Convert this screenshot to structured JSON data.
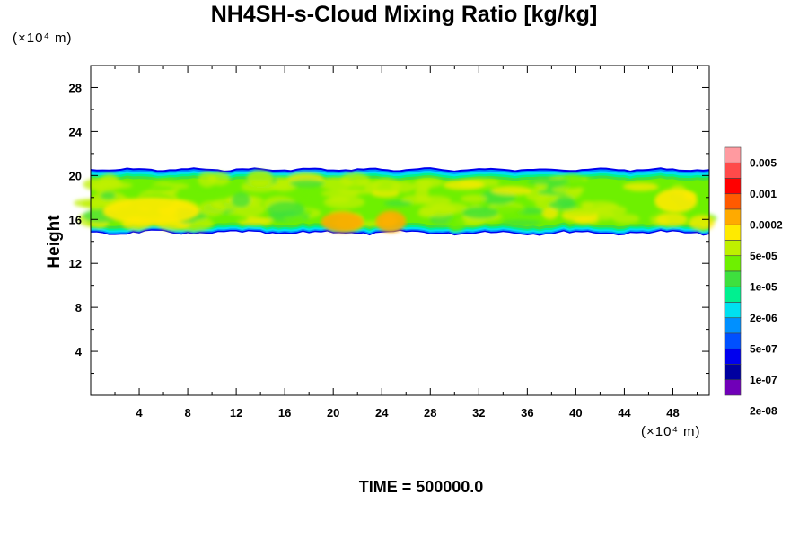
{
  "chart_data": {
    "type": "heatmap",
    "title": "NH4SH-s-Cloud Mixing Ratio [kg/kg]",
    "ylabel": "Height",
    "x_unit": "(×10⁴ m)",
    "y_unit": "(×10⁴ m)",
    "footer": "TIME = 500000.0",
    "xlim": [
      0,
      51
    ],
    "ylim": [
      0,
      30
    ],
    "x_ticks": [
      4,
      8,
      12,
      16,
      20,
      24,
      28,
      32,
      36,
      40,
      44,
      48
    ],
    "y_ticks": [
      4,
      8,
      12,
      16,
      20,
      24,
      28
    ],
    "cloud_layer": {
      "bottom": 14.8,
      "top": 20.6
    },
    "colorbar": {
      "colors": [
        "#ff9aa0",
        "#ff4a4a",
        "#ff0000",
        "#ff5a00",
        "#ffaa00",
        "#ffea00",
        "#bff000",
        "#6ef000",
        "#3ee03e",
        "#00f090",
        "#00e0f0",
        "#0090ff",
        "#0050ff",
        "#0000ee",
        "#0000a0",
        "#7000b8"
      ],
      "labels": [
        "0.005",
        "0.001",
        "0.0002",
        "5e-05",
        "1e-05",
        "2e-06",
        "5e-07",
        "1e-07",
        "2e-08"
      ]
    },
    "features": [
      {
        "value_color": "#ffaa00",
        "x_range": [
          19,
          22.5
        ],
        "y_range": [
          14.8,
          16.7
        ]
      },
      {
        "value_color": "#ffaa00",
        "x_range": [
          23.5,
          26
        ],
        "y_range": [
          14.8,
          16.8
        ]
      },
      {
        "value_color": "#ffea00",
        "x_range": [
          46.5,
          50
        ],
        "y_range": [
          16.6,
          18.8
        ]
      },
      {
        "value_color": "#ffea00",
        "x_range": [
          1,
          9
        ],
        "y_range": [
          15.5,
          18
        ]
      }
    ]
  }
}
